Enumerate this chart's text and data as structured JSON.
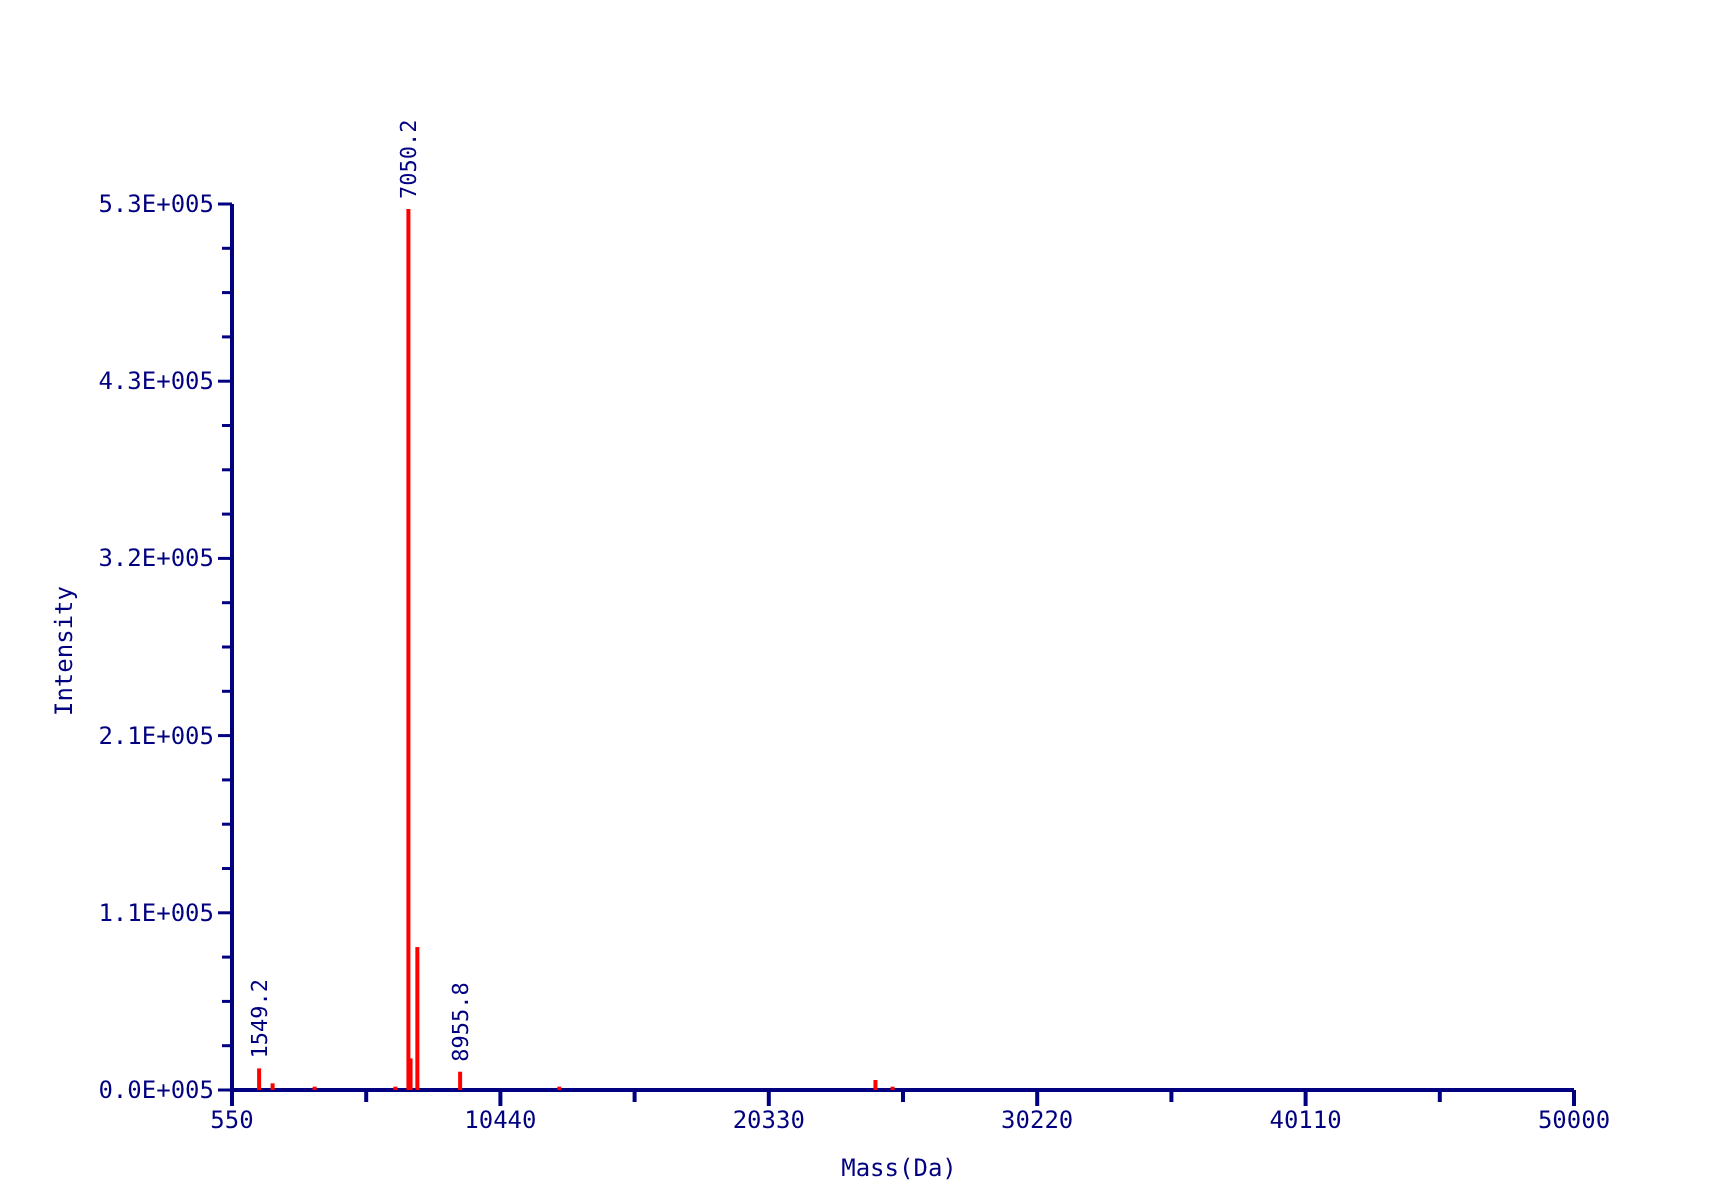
{
  "chart_data": {
    "type": "bar",
    "xlabel": "Mass(Da)",
    "ylabel": "Intensity",
    "x": [
      1549.2,
      2046,
      3594,
      6570,
      7050.2,
      7130,
      7380,
      8955.8,
      12610,
      24260,
      24890
    ],
    "values": [
      13000,
      4000,
      2000,
      2000,
      530000,
      19000,
      86000,
      11000,
      2000,
      6000,
      2000
    ],
    "color": "#ff0000",
    "xlim": [
      550,
      50000
    ],
    "xticks": [
      550,
      {
        "value": 5495,
        "label": null
      },
      10440,
      {
        "value": 15385,
        "label": null
      },
      20330,
      {
        "value": 25275,
        "label": null
      },
      30220,
      {
        "value": 35165,
        "label": null
      },
      40110,
      {
        "value": 45055,
        "label": null
      },
      50000
    ],
    "ylim": [
      0,
      533000
    ],
    "yticks": [
      {
        "value": 0,
        "label": "0.0E+005"
      },
      {
        "value": 26650,
        "label": null
      },
      {
        "value": 53300,
        "label": null
      },
      {
        "value": 79950,
        "label": null
      },
      {
        "value": 106600,
        "label": "1.1E+005"
      },
      {
        "value": 133250,
        "label": null
      },
      {
        "value": 159900,
        "label": null
      },
      {
        "value": 186550,
        "label": null
      },
      {
        "value": 213200,
        "label": "2.1E+005"
      },
      {
        "value": 239850,
        "label": null
      },
      {
        "value": 266500,
        "label": null
      },
      {
        "value": 293150,
        "label": null
      },
      {
        "value": 319800,
        "label": "3.2E+005"
      },
      {
        "value": 346450,
        "label": null
      },
      {
        "value": 373100,
        "label": null
      },
      {
        "value": 399750,
        "label": null
      },
      {
        "value": 426400,
        "label": "4.3E+005"
      },
      {
        "value": 453050,
        "label": null
      },
      {
        "value": 479700,
        "label": null
      },
      {
        "value": 506350,
        "label": null
      },
      {
        "value": 533000,
        "label": "5.3E+005"
      }
    ],
    "annotations": [
      {
        "text": "1549.2",
        "x": 1549.2,
        "y": 13000
      },
      {
        "text": "7050.2",
        "x": 7050.2,
        "y": 530000
      },
      {
        "text": "8955.8",
        "x": 8955.8,
        "y": 11000
      }
    ]
  }
}
